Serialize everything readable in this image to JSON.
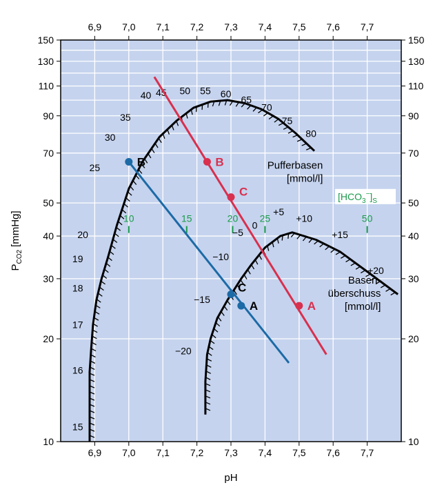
{
  "chart_data": {
    "type": "line",
    "xlabel": "pH",
    "ylabel": "P",
    "ylabel_sub": "CO2",
    "ylabel_unit": "[mmHg]",
    "xlim": [
      6.8,
      7.8
    ],
    "ylim": [
      10,
      150
    ],
    "yscale": "log",
    "grid": true,
    "colors": {
      "background": "#c5d3ee",
      "grid": "#ffffff",
      "curves": "#000000",
      "line_B": "#1c6aa6",
      "line_C": "#d8304e",
      "bicarbonate": "#1a9a4a"
    },
    "x_ticks": [
      {
        "value": 6.9,
        "label": "6,9"
      },
      {
        "value": 7.0,
        "label": "7,0"
      },
      {
        "value": 7.1,
        "label": "7,1"
      },
      {
        "value": 7.2,
        "label": "7,2"
      },
      {
        "value": 7.3,
        "label": "7,3"
      },
      {
        "value": 7.4,
        "label": "7,4"
      },
      {
        "value": 7.5,
        "label": "7,5"
      },
      {
        "value": 7.6,
        "label": "7,6"
      },
      {
        "value": 7.7,
        "label": "7,7"
      }
    ],
    "y_ticks": [
      {
        "value": 10,
        "label": "10"
      },
      {
        "value": 20,
        "label": "20"
      },
      {
        "value": 30,
        "label": "30"
      },
      {
        "value": 40,
        "label": "40"
      },
      {
        "value": 50,
        "label": "50"
      },
      {
        "value": 70,
        "label": "70"
      },
      {
        "value": 90,
        "label": "90"
      },
      {
        "value": 110,
        "label": "110"
      },
      {
        "value": 130,
        "label": "130"
      },
      {
        "value": 150,
        "label": "150"
      }
    ],
    "y_gridlines": [
      10,
      20,
      30,
      40,
      50,
      60,
      70,
      80,
      90,
      100,
      110,
      120,
      130,
      140,
      150
    ],
    "x_gridlines": [
      6.9,
      7.0,
      7.1,
      7.2,
      7.3,
      7.4,
      7.5,
      7.6,
      7.7
    ],
    "series": [
      {
        "id": "line_B",
        "x": [
          7.0,
          7.47
        ],
        "y": [
          66,
          17
        ]
      },
      {
        "id": "line_C",
        "x": [
          7.075,
          7.58
        ],
        "y": [
          117,
          18
        ]
      }
    ],
    "buffer_base_curve": {
      "x": [
        6.885,
        6.885,
        6.885,
        6.89,
        6.895,
        6.905,
        6.92,
        6.94,
        6.965,
        7.0,
        7.04,
        7.09,
        7.14,
        7.19,
        7.24,
        7.29,
        7.34,
        7.39,
        7.44,
        7.49,
        7.545
      ],
      "y": [
        10,
        13,
        16,
        19,
        22,
        26,
        30,
        35,
        43,
        55,
        66,
        78,
        87,
        95,
        99,
        100,
        98,
        94,
        88,
        80,
        71
      ],
      "labels": [
        {
          "text": "15",
          "x": 6.85,
          "y": 10.8
        },
        {
          "text": "16",
          "x": 6.85,
          "y": 15.8
        },
        {
          "text": "17",
          "x": 6.85,
          "y": 21.5
        },
        {
          "text": "18",
          "x": 6.85,
          "y": 27.5
        },
        {
          "text": "19",
          "x": 6.85,
          "y": 33.5
        },
        {
          "text": "20",
          "x": 6.865,
          "y": 39.5
        },
        {
          "text": "25",
          "x": 6.9,
          "y": 62
        },
        {
          "text": "30",
          "x": 6.945,
          "y": 76
        },
        {
          "text": "35",
          "x": 6.99,
          "y": 87
        },
        {
          "text": "40",
          "x": 7.05,
          "y": 101
        },
        {
          "text": "45",
          "x": 7.095,
          "y": 103
        },
        {
          "text": "50",
          "x": 7.165,
          "y": 104
        },
        {
          "text": "55",
          "x": 7.225,
          "y": 104
        },
        {
          "text": "60",
          "x": 7.285,
          "y": 102
        },
        {
          "text": "65",
          "x": 7.345,
          "y": 98
        },
        {
          "text": "70",
          "x": 7.405,
          "y": 93
        },
        {
          "text": "75",
          "x": 7.465,
          "y": 85
        },
        {
          "text": "80",
          "x": 7.535,
          "y": 78
        }
      ]
    },
    "base_excess_curve": {
      "x": [
        7.225,
        7.225,
        7.23,
        7.24,
        7.26,
        7.29,
        7.33,
        7.36,
        7.4,
        7.445,
        7.48,
        7.55,
        7.62,
        7.69,
        7.79
      ],
      "y": [
        12,
        15,
        18,
        20,
        23,
        26,
        30,
        33,
        37,
        40,
        41,
        39,
        36,
        32,
        27
      ],
      "labels": [
        {
          "text": "−20",
          "x": 7.16,
          "y": 18
        },
        {
          "text": "−15",
          "x": 7.215,
          "y": 25.5
        },
        {
          "text": "−10",
          "x": 7.27,
          "y": 34
        },
        {
          "text": "−5",
          "x": 7.32,
          "y": 40
        },
        {
          "text": "0",
          "x": 7.37,
          "y": 42
        },
        {
          "text": "+5",
          "x": 7.44,
          "y": 46
        },
        {
          "text": "+10",
          "x": 7.515,
          "y": 44
        },
        {
          "text": "+15",
          "x": 7.62,
          "y": 39.5
        },
        {
          "text": "+20",
          "x": 7.725,
          "y": 31
        }
      ]
    },
    "bicarbonate_scale": {
      "label": "[HCO",
      "label_sub": "3",
      "label_sup": "−",
      "label_close": "]",
      "label_subscript_s": "S",
      "y": 44,
      "ticks": [
        {
          "text": "10",
          "x": 7.0
        },
        {
          "text": "15",
          "x": 7.17
        },
        {
          "text": "20",
          "x": 7.305
        },
        {
          "text": "25",
          "x": 7.4
        },
        {
          "text": "50",
          "x": 7.7
        }
      ]
    },
    "points": [
      {
        "id": "B1",
        "label": "B",
        "x": 7.0,
        "y": 66,
        "color": "line_B",
        "label_dx": 12
      },
      {
        "id": "C1",
        "label": "C",
        "x": 7.3,
        "y": 27,
        "color": "line_B",
        "label_dx": 10,
        "label_dy": -10
      },
      {
        "id": "A1",
        "label": "A",
        "x": 7.33,
        "y": 25,
        "color": "line_B",
        "label_dx": 12
      },
      {
        "id": "B2",
        "label": "B",
        "x": 7.23,
        "y": 66,
        "color": "line_C",
        "label_dx": 12
      },
      {
        "id": "C2",
        "label": "C",
        "x": 7.3,
        "y": 52,
        "color": "line_C",
        "label_dx": 12,
        "label_dy": -8
      },
      {
        "id": "A2",
        "label": "A",
        "x": 7.5,
        "y": 25,
        "color": "line_C",
        "label_dx": 12
      }
    ],
    "annotations": [
      {
        "id": "pufferbasen-title",
        "lines": [
          "Pufferbasen",
          "[mmol/l]"
        ],
        "x": 7.57,
        "y": 63
      },
      {
        "id": "basenueberschuss-title",
        "lines": [
          "Basen-",
          "überschuss",
          "[mmol/l]"
        ],
        "x": 7.74,
        "y": 29
      }
    ]
  }
}
